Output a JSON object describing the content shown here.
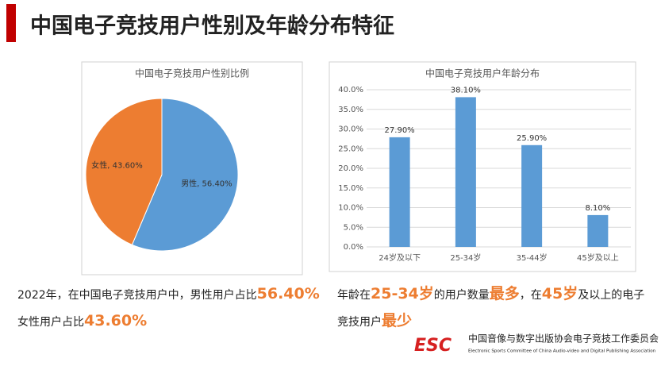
{
  "header": {
    "title": "中国电子竞技用户性别及年龄分布特征"
  },
  "chart_data": [
    {
      "type": "pie",
      "title": "中国电子竞技用户性别比例",
      "values": [
        56.4,
        43.6
      ],
      "value_labels": [
        "男性, 56.40%",
        "女性, 43.60%"
      ],
      "colors": [
        "#5b9bd5",
        "#ed7d31"
      ]
    },
    {
      "type": "bar",
      "title": "中国电子竞技用户年龄分布",
      "categories": [
        "24岁及以下",
        "25-34岁",
        "35-44岁",
        "45岁及以上"
      ],
      "values": [
        27.9,
        38.1,
        25.9,
        8.1
      ],
      "value_labels": [
        "27.90%",
        "38.10%",
        "25.90%",
        "8.10%"
      ],
      "color": "#5b9bd5",
      "ylim": [
        0,
        40
      ],
      "yticks": [
        {
          "value": 0,
          "label": "0.0%"
        },
        {
          "value": 5,
          "label": "5.0%"
        },
        {
          "value": 10,
          "label": "10.0%"
        },
        {
          "value": 15,
          "label": "15.0%"
        },
        {
          "value": 20,
          "label": "20.0%"
        },
        {
          "value": 25,
          "label": "25.0%"
        },
        {
          "value": 30,
          "label": "30.0%"
        },
        {
          "value": 35,
          "label": "35.0%"
        },
        {
          "value": 40,
          "label": "40.0%"
        }
      ],
      "grid": true
    }
  ],
  "captions": [
    [
      [
        {
          "text": "2022年，在中国电子竞技用户中，男性用户占比"
        },
        {
          "text": "56.40%",
          "highlight": true
        }
      ],
      [
        {
          "text": "女性用户占比"
        },
        {
          "text": "43.60%",
          "highlight": true
        }
      ]
    ],
    [
      [
        {
          "text": "年龄在"
        },
        {
          "text": "25-34岁",
          "highlight": true
        },
        {
          "text": "的用户数量"
        },
        {
          "text": "最多",
          "highlight": true
        },
        {
          "text": "，在"
        },
        {
          "text": "45岁",
          "highlight": true
        },
        {
          "text": "及以上的电子"
        }
      ],
      [
        {
          "text": "竞技用户"
        },
        {
          "text": "最少",
          "highlight": true
        }
      ]
    ]
  ],
  "footer": {
    "logo": "ESC",
    "name": "中国音像与数字出版协会电子竞技工作委员会",
    "english": "Electronic Sports Committee of China Audio-video and Digital Publishing Association"
  }
}
